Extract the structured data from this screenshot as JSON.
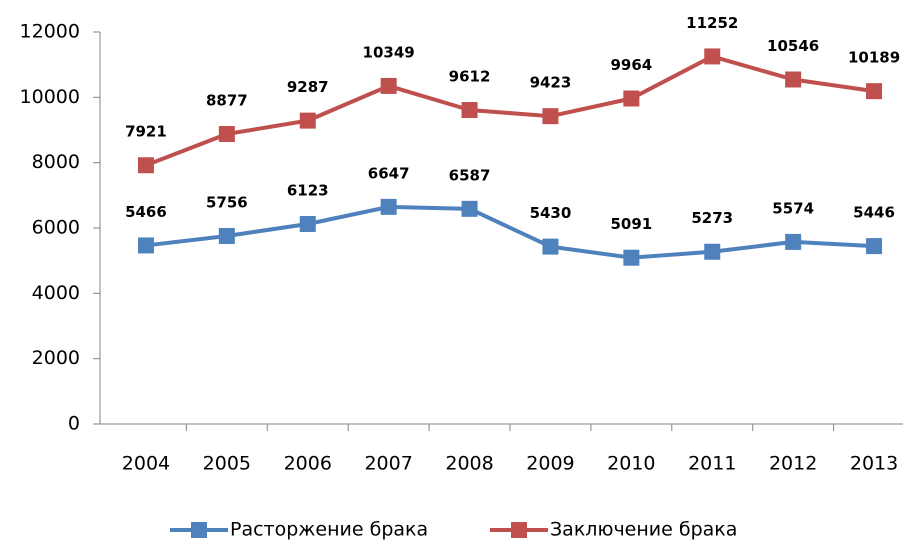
{
  "chart_data": {
    "type": "line",
    "categories": [
      "2004",
      "2005",
      "2006",
      "2007",
      "2008",
      "2009",
      "2010",
      "2011",
      "2012",
      "2013"
    ],
    "series": [
      {
        "name": "Расторжение брака",
        "color": "#4f81bd",
        "values": [
          5466,
          5756,
          6123,
          6647,
          6587,
          5430,
          5091,
          5273,
          5574,
          5446
        ]
      },
      {
        "name": "Заключение брака",
        "color": "#c0504d",
        "values": [
          7921,
          8877,
          9287,
          10349,
          9612,
          9423,
          9964,
          11252,
          10546,
          10189
        ]
      }
    ],
    "ylim": [
      0,
      12000
    ],
    "yticks": [
      0,
      2000,
      4000,
      6000,
      8000,
      10000,
      12000
    ],
    "legend": "bottom"
  }
}
